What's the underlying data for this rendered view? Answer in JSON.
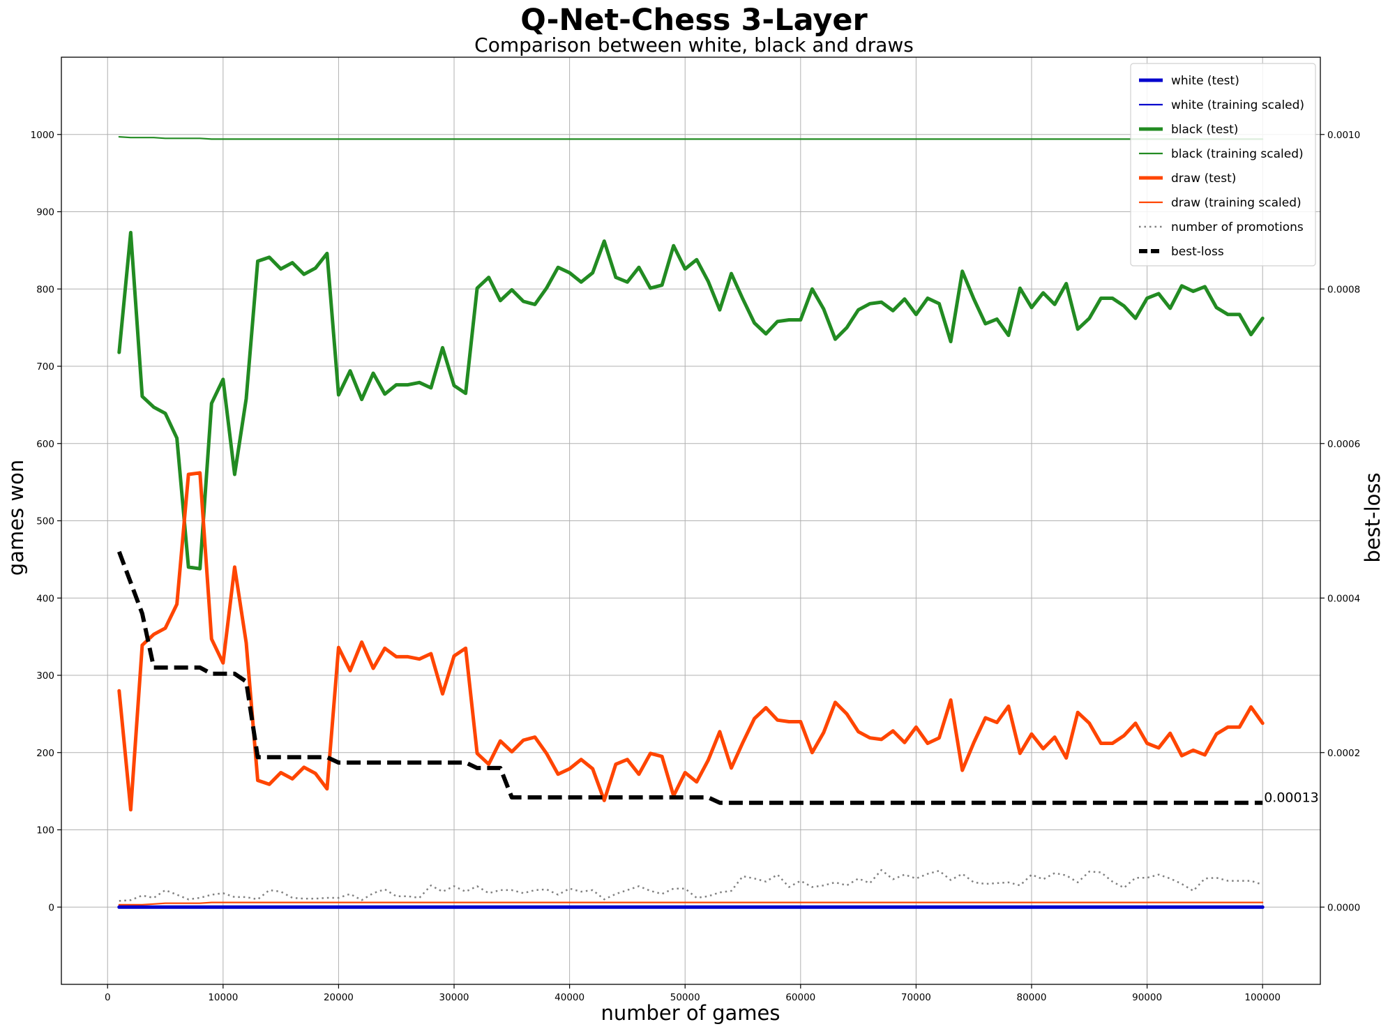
{
  "chart_data": {
    "type": "line",
    "title": "Q-Net-Chess 3-Layer",
    "subtitle": "Comparison between white, black and draws",
    "xlabel": "number of games",
    "ylabel": "games won",
    "y2label": "best-loss",
    "xlim": [
      -4000,
      105000
    ],
    "ylim": [
      -100,
      1100
    ],
    "y2lim": [
      -0.0001,
      0.0011
    ],
    "xticks": [
      0,
      10000,
      20000,
      30000,
      40000,
      50000,
      60000,
      70000,
      80000,
      90000,
      100000
    ],
    "xtick_labels": [
      "0",
      "10000",
      "20000",
      "30000",
      "40000",
      "50000",
      "60000",
      "70000",
      "80000",
      "90000",
      "100000"
    ],
    "yticks": [
      0,
      100,
      200,
      300,
      400,
      500,
      600,
      700,
      800,
      900,
      1000
    ],
    "ytick_labels": [
      "0",
      "100",
      "200",
      "300",
      "400",
      "500",
      "600",
      "700",
      "800",
      "900",
      "1000"
    ],
    "y2ticks": [
      0,
      0.0002,
      0.0004,
      0.0006,
      0.0008,
      0.001
    ],
    "y2tick_labels": [
      "0.0000",
      "0.0002",
      "0.0004",
      "0.0006",
      "0.0008",
      "0.0010"
    ],
    "grid": true,
    "legend_position": "top-right",
    "annotation": {
      "text": "0.00013",
      "x": 100000,
      "y2": 0.000135
    },
    "series_styles": [
      {
        "name": "white (test)",
        "color": "#0000cd",
        "width": 5,
        "dash": "solid"
      },
      {
        "name": "white (training scaled)",
        "color": "#0000cd",
        "width": 2.2,
        "dash": "solid"
      },
      {
        "name": "black (test)",
        "color": "#228b22",
        "width": 5,
        "dash": "solid"
      },
      {
        "name": "black (training scaled)",
        "color": "#228b22",
        "width": 2.2,
        "dash": "solid"
      },
      {
        "name": "draw (test)",
        "color": "#ff4500",
        "width": 5,
        "dash": "solid"
      },
      {
        "name": "draw (training scaled)",
        "color": "#ff4500",
        "width": 2.2,
        "dash": "solid"
      },
      {
        "name": "number of promotions",
        "color": "#808080",
        "width": 2.5,
        "dash": "dotted"
      },
      {
        "name": "best-loss",
        "color": "#000000",
        "width": 6,
        "dash": "dashed"
      }
    ],
    "x": [
      1000,
      2000,
      3000,
      4000,
      5000,
      6000,
      7000,
      8000,
      9000,
      10000,
      11000,
      12000,
      13000,
      14000,
      15000,
      16000,
      17000,
      18000,
      19000,
      20000,
      21000,
      22000,
      23000,
      24000,
      25000,
      26000,
      27000,
      28000,
      29000,
      30000,
      31000,
      32000,
      33000,
      34000,
      35000,
      36000,
      37000,
      38000,
      39000,
      40000,
      41000,
      42000,
      43000,
      44000,
      45000,
      46000,
      47000,
      48000,
      49000,
      50000,
      51000,
      52000,
      53000,
      54000,
      55000,
      56000,
      57000,
      58000,
      59000,
      60000,
      61000,
      62000,
      63000,
      64000,
      65000,
      66000,
      67000,
      68000,
      69000,
      70000,
      71000,
      72000,
      73000,
      74000,
      75000,
      76000,
      77000,
      78000,
      79000,
      80000,
      81000,
      82000,
      83000,
      84000,
      85000,
      86000,
      87000,
      88000,
      89000,
      90000,
      91000,
      92000,
      93000,
      94000,
      95000,
      96000,
      97000,
      98000,
      99000,
      100000
    ],
    "series": [
      {
        "name": "white (test)",
        "axis": "left",
        "values": [
          0,
          0,
          0,
          0,
          0,
          0,
          0,
          0,
          0,
          0,
          0,
          0,
          0,
          0,
          0,
          0,
          0,
          0,
          0,
          0,
          0,
          0,
          0,
          0,
          0,
          0,
          0,
          0,
          0,
          0,
          0,
          0,
          0,
          0,
          0,
          0,
          0,
          0,
          0,
          0,
          0,
          0,
          0,
          0,
          0,
          0,
          0,
          0,
          0,
          0,
          0,
          0,
          0,
          0,
          0,
          0,
          0,
          0,
          0,
          0,
          0,
          0,
          0,
          0,
          0,
          0,
          0,
          0,
          0,
          0,
          0,
          0,
          0,
          0,
          0,
          0,
          0,
          0,
          0,
          0,
          0,
          0,
          0,
          0,
          0,
          0,
          0,
          0,
          0,
          0,
          0,
          0,
          0,
          0,
          0,
          0,
          0,
          0,
          0,
          0
        ]
      },
      {
        "name": "white (training scaled)",
        "axis": "left",
        "values": [
          1,
          1,
          1,
          1,
          1,
          1,
          1,
          1,
          1,
          1,
          1,
          1,
          1,
          1,
          1,
          1,
          1,
          1,
          1,
          1,
          1,
          1,
          1,
          1,
          1,
          1,
          1,
          1,
          1,
          1,
          1,
          1,
          1,
          1,
          1,
          1,
          1,
          1,
          1,
          1,
          1,
          1,
          1,
          1,
          1,
          1,
          1,
          1,
          1,
          1,
          1,
          1,
          1,
          1,
          1,
          1,
          1,
          1,
          1,
          1,
          1,
          1,
          1,
          1,
          1,
          1,
          1,
          1,
          1,
          1,
          1,
          1,
          1,
          1,
          1,
          1,
          1,
          1,
          1,
          1,
          1,
          1,
          1,
          1,
          1,
          1,
          1,
          1,
          1,
          1,
          1,
          1,
          1,
          1,
          1,
          1,
          1,
          1,
          1,
          1
        ]
      },
      {
        "name": "black (test)",
        "axis": "left",
        "values": [
          718,
          873,
          661,
          647,
          639,
          607,
          440,
          438,
          652,
          683,
          560,
          658,
          836,
          841,
          826,
          834,
          819,
          827,
          846,
          663,
          694,
          657,
          691,
          664,
          676,
          676,
          679,
          672,
          724,
          675,
          665,
          801,
          815,
          785,
          799,
          784,
          780,
          801,
          828,
          821,
          809,
          821,
          862,
          815,
          809,
          828,
          801,
          805,
          856,
          826,
          838,
          810,
          773,
          820,
          787,
          756,
          742,
          758,
          760,
          760,
          800,
          774,
          735,
          750,
          773,
          781,
          783,
          772,
          787,
          767,
          788,
          781,
          732,
          823,
          787,
          755,
          761,
          740,
          801,
          776,
          795,
          780,
          807,
          748,
          762,
          788,
          788,
          778,
          762,
          788,
          794,
          775,
          804,
          797,
          803,
          776,
          767,
          767,
          741,
          762
        ]
      },
      {
        "name": "black (training scaled)",
        "axis": "left",
        "values": [
          997,
          996,
          996,
          996,
          995,
          995,
          995,
          995,
          994,
          994,
          994,
          994,
          994,
          994,
          994,
          994,
          994,
          994,
          994,
          994,
          994,
          994,
          994,
          994,
          994,
          994,
          994,
          994,
          994,
          994,
          994,
          994,
          994,
          994,
          994,
          994,
          994,
          994,
          994,
          994,
          994,
          994,
          994,
          994,
          994,
          994,
          994,
          994,
          994,
          994,
          994,
          994,
          994,
          994,
          994,
          994,
          994,
          994,
          994,
          994,
          994,
          994,
          994,
          994,
          994,
          994,
          994,
          994,
          994,
          994,
          994,
          994,
          994,
          994,
          994,
          994,
          994,
          994,
          994,
          994,
          994,
          994,
          994,
          994,
          994,
          994,
          994,
          994,
          994,
          994,
          994,
          994,
          994,
          994,
          994,
          994,
          994,
          994,
          994,
          994
        ]
      },
      {
        "name": "draw (test)",
        "axis": "left",
        "values": [
          280,
          126,
          339,
          353,
          361,
          392,
          560,
          562,
          347,
          316,
          440,
          342,
          164,
          159,
          174,
          166,
          181,
          173,
          153,
          336,
          306,
          343,
          309,
          335,
          324,
          324,
          321,
          328,
          276,
          325,
          335,
          199,
          185,
          215,
          201,
          216,
          220,
          199,
          172,
          179,
          191,
          179,
          138,
          185,
          191,
          172,
          199,
          195,
          144,
          174,
          162,
          190,
          227,
          180,
          213,
          244,
          258,
          242,
          240,
          240,
          200,
          226,
          265,
          250,
          227,
          219,
          217,
          228,
          213,
          233,
          212,
          219,
          268,
          177,
          213,
          245,
          239,
          260,
          199,
          224,
          205,
          220,
          193,
          252,
          238,
          212,
          212,
          222,
          238,
          212,
          206,
          225,
          196,
          203,
          197,
          224,
          233,
          233,
          259,
          238
        ]
      },
      {
        "name": "draw (training scaled)",
        "axis": "left",
        "values": [
          3,
          3,
          3,
          4,
          5,
          5,
          5,
          5,
          6,
          6,
          6,
          6,
          6,
          6,
          6,
          6,
          6,
          6,
          6,
          6,
          6,
          6,
          6,
          6,
          6,
          6,
          6,
          6,
          6,
          6,
          6,
          6,
          6,
          6,
          6,
          6,
          6,
          6,
          6,
          6,
          6,
          6,
          6,
          6,
          6,
          6,
          6,
          6,
          6,
          6,
          6,
          6,
          6,
          6,
          6,
          6,
          6,
          6,
          6,
          6,
          6,
          6,
          6,
          6,
          6,
          6,
          6,
          6,
          6,
          6,
          6,
          6,
          6,
          6,
          6,
          6,
          6,
          6,
          6,
          6,
          6,
          6,
          6,
          6,
          6,
          6,
          6,
          6,
          6,
          6,
          6,
          6,
          6,
          6,
          6,
          6,
          6,
          6,
          6,
          6
        ]
      },
      {
        "name": "number of promotions",
        "axis": "left",
        "values": [
          8,
          9,
          15,
          12,
          22,
          16,
          10,
          12,
          16,
          18,
          13,
          13,
          10,
          22,
          20,
          12,
          11,
          11,
          12,
          12,
          17,
          9,
          18,
          23,
          14,
          14,
          12,
          28,
          20,
          27,
          20,
          27,
          18,
          22,
          22,
          18,
          22,
          23,
          16,
          24,
          20,
          22,
          10,
          17,
          22,
          27,
          21,
          17,
          24,
          24,
          12,
          14,
          19,
          21,
          40,
          37,
          33,
          42,
          26,
          34,
          26,
          28,
          32,
          28,
          37,
          31,
          48,
          36,
          42,
          37,
          43,
          47,
          35,
          43,
          32,
          30,
          31,
          32,
          28,
          42,
          36,
          44,
          41,
          32,
          46,
          45,
          33,
          25,
          38,
          38,
          42,
          37,
          30,
          21,
          37,
          38,
          34,
          34,
          34,
          29
        ]
      },
      {
        "name": "best-loss",
        "axis": "right",
        "values": [
          0.00046,
          0.00042,
          0.00038,
          0.00031,
          0.00031,
          0.00031,
          0.00031,
          0.00031,
          0.000302,
          0.000302,
          0.000302,
          0.000292,
          0.000194,
          0.000194,
          0.000194,
          0.000194,
          0.000194,
          0.000194,
          0.000194,
          0.000187,
          0.000187,
          0.000187,
          0.000187,
          0.000187,
          0.000187,
          0.000187,
          0.000187,
          0.000187,
          0.000187,
          0.000187,
          0.000187,
          0.00018,
          0.00018,
          0.00018,
          0.000142,
          0.000142,
          0.000142,
          0.000142,
          0.000142,
          0.000142,
          0.000142,
          0.000142,
          0.000142,
          0.000142,
          0.000142,
          0.000142,
          0.000142,
          0.000142,
          0.000142,
          0.000142,
          0.000142,
          0.000142,
          0.000135,
          0.000135,
          0.000135,
          0.000135,
          0.000135,
          0.000135,
          0.000135,
          0.000135,
          0.000135,
          0.000135,
          0.000135,
          0.000135,
          0.000135,
          0.000135,
          0.000135,
          0.000135,
          0.000135,
          0.000135,
          0.000135,
          0.000135,
          0.000135,
          0.000135,
          0.000135,
          0.000135,
          0.000135,
          0.000135,
          0.000135,
          0.000135,
          0.000135,
          0.000135,
          0.000135,
          0.000135,
          0.000135,
          0.000135,
          0.000135,
          0.000135,
          0.000135,
          0.000135,
          0.000135,
          0.000135,
          0.000135,
          0.000135,
          0.000135,
          0.000135,
          0.000135,
          0.000135,
          0.000135,
          0.000135
        ]
      }
    ]
  }
}
